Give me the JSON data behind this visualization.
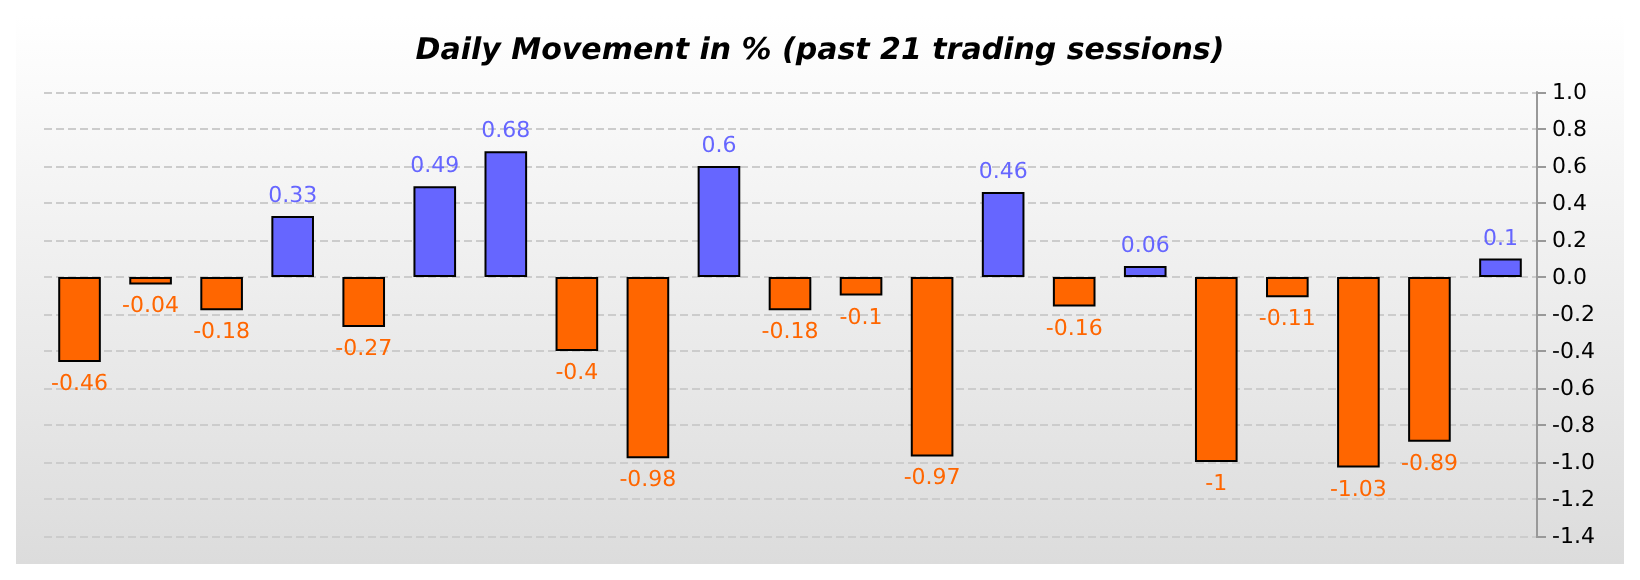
{
  "chart_data": {
    "type": "bar",
    "title": "Daily Movement in % (past 21 trading sessions)",
    "categories": [
      null,
      null,
      null,
      null,
      null,
      null,
      null,
      null,
      null,
      null,
      null,
      null,
      null,
      null,
      null,
      null,
      null,
      null,
      null,
      null,
      null
    ],
    "values": [
      -0.46,
      -0.04,
      -0.18,
      0.33,
      -0.27,
      0.49,
      0.68,
      -0.4,
      -0.98,
      0.6,
      -0.18,
      -0.1,
      -0.97,
      0.46,
      -0.16,
      0.06,
      -1,
      -0.11,
      -1.03,
      -0.89,
      0.1
    ],
    "colors": [
      "#ff6600",
      "#ff6600",
      "#ff6600",
      "#6666ff",
      "#ff6600",
      "#6666ff",
      "#6666ff",
      "#ff6600",
      "#ff6600",
      "#6666ff",
      "#ff6600",
      "#ff6600",
      "#ff6600",
      "#6666ff",
      "#ff6600",
      "#6666ff",
      "#ff6600",
      "#ff6600",
      "#ff6600",
      "#ff6600",
      "#6666ff"
    ],
    "ylim": [
      -1.4,
      1.0
    ],
    "yticks": [
      {
        "value": -1.4,
        "label": "-1.4"
      },
      {
        "value": -1.2,
        "label": "-1.2"
      },
      {
        "value": -1.0,
        "label": "-1.0"
      },
      {
        "value": -0.8,
        "label": "-0.8"
      },
      {
        "value": -0.6,
        "label": "-0.6"
      },
      {
        "value": -0.4,
        "label": "-0.4"
      },
      {
        "value": -0.2,
        "label": "-0.2"
      },
      {
        "value": 0,
        "label": "0.0"
      },
      {
        "value": 0.2,
        "label": "0.2"
      },
      {
        "value": 0.4,
        "label": "0.4"
      },
      {
        "value": 0.6,
        "label": "0.6"
      },
      {
        "value": 0.8,
        "label": "0.8"
      },
      {
        "value": 1.0,
        "label": "1.0"
      }
    ],
    "grid": "y",
    "data_labels": true
  }
}
